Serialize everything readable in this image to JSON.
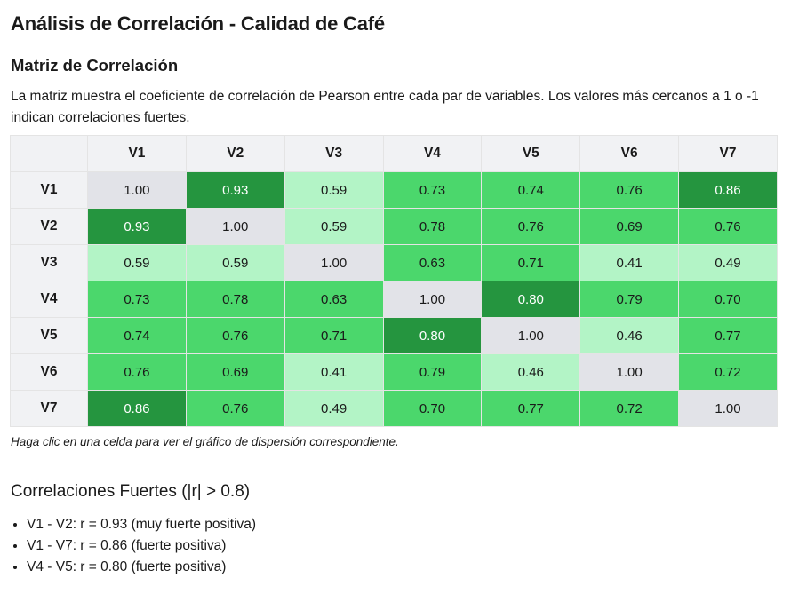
{
  "page": {
    "title": "Análisis de Correlación - Calidad de Café",
    "matrix_title": "Matriz de Correlación",
    "description": "La matriz muestra el coeficiente de correlación de Pearson entre cada par de variables. Los valores más cercanos a 1 o -1 indican correlaciones fuertes.",
    "hint": "Haga clic en una celda para ver el gráfico de dispersión correspondiente.",
    "strong_title": "Correlaciones Fuertes (|r| > 0.8)"
  },
  "matrix": {
    "labels": [
      "V1",
      "V2",
      "V3",
      "V4",
      "V5",
      "V6",
      "V7"
    ],
    "values": [
      [
        "1.00",
        "0.93",
        "0.59",
        "0.73",
        "0.74",
        "0.76",
        "0.86"
      ],
      [
        "0.93",
        "1.00",
        "0.59",
        "0.78",
        "0.76",
        "0.69",
        "0.76"
      ],
      [
        "0.59",
        "0.59",
        "1.00",
        "0.63",
        "0.71",
        "0.41",
        "0.49"
      ],
      [
        "0.73",
        "0.78",
        "0.63",
        "1.00",
        "0.80",
        "0.79",
        "0.70"
      ],
      [
        "0.74",
        "0.76",
        "0.71",
        "0.80",
        "1.00",
        "0.46",
        "0.77"
      ],
      [
        "0.76",
        "0.69",
        "0.41",
        "0.79",
        "0.46",
        "1.00",
        "0.72"
      ],
      [
        "0.86",
        "0.76",
        "0.49",
        "0.70",
        "0.77",
        "0.72",
        "1.00"
      ]
    ],
    "colors": {
      "diagonal": "#e2e3e8",
      "strong": "#25953f",
      "medium": "#4bd76c",
      "weak": "#b3f4c6",
      "text_dark": "#1a1a1a",
      "text_light": "#ffffff"
    }
  },
  "strong_correlations": [
    "V1 - V2: r = 0.93 (muy fuerte positiva)",
    "V1 - V7: r = 0.86 (fuerte positiva)",
    "V4 - V5: r = 0.80 (fuerte positiva)"
  ]
}
